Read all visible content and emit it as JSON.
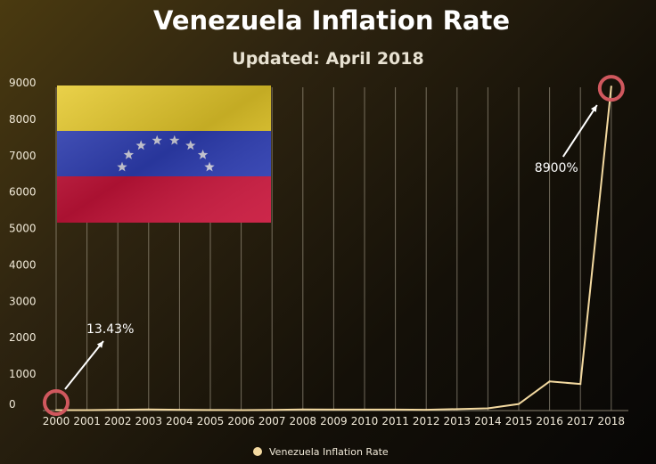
{
  "chart_data": {
    "type": "line",
    "title": "Venezuela Inflation Rate",
    "subtitle": "Updated: April 2018",
    "xlabel": "",
    "ylabel": "",
    "ylim": [
      0,
      9000
    ],
    "yticks": [
      0,
      1000,
      2000,
      3000,
      4000,
      5000,
      6000,
      7000,
      8000,
      9000
    ],
    "grid": "vertical",
    "legend_position": "bottom",
    "x": [
      "2000",
      "2001",
      "2002",
      "2003",
      "2004",
      "2005",
      "2006",
      "2007",
      "2008",
      "2009",
      "2010",
      "2011",
      "2012",
      "2013",
      "2014",
      "2015",
      "2016",
      "2017",
      "2018"
    ],
    "series": [
      {
        "name": "Venezuela Inflation Rate",
        "color": "#f3d9a0",
        "values": [
          13.43,
          12.5,
          22.4,
          31.1,
          21.7,
          16,
          13.7,
          18.7,
          31.4,
          28.6,
          28.2,
          26.1,
          21.1,
          40.6,
          62.2,
          180,
          800,
          730,
          8900
        ]
      }
    ],
    "annotations": [
      {
        "text": "13.43%",
        "x": "2000",
        "value": 13.43,
        "color": "#d0585e"
      },
      {
        "text": "8900%",
        "x": "2018",
        "value": 8900,
        "color": "#d0585e"
      }
    ]
  },
  "image": {
    "name": "venezuela-flag",
    "colors": [
      "#e6c92a",
      "#2f3fb6",
      "#c8143a"
    ]
  }
}
